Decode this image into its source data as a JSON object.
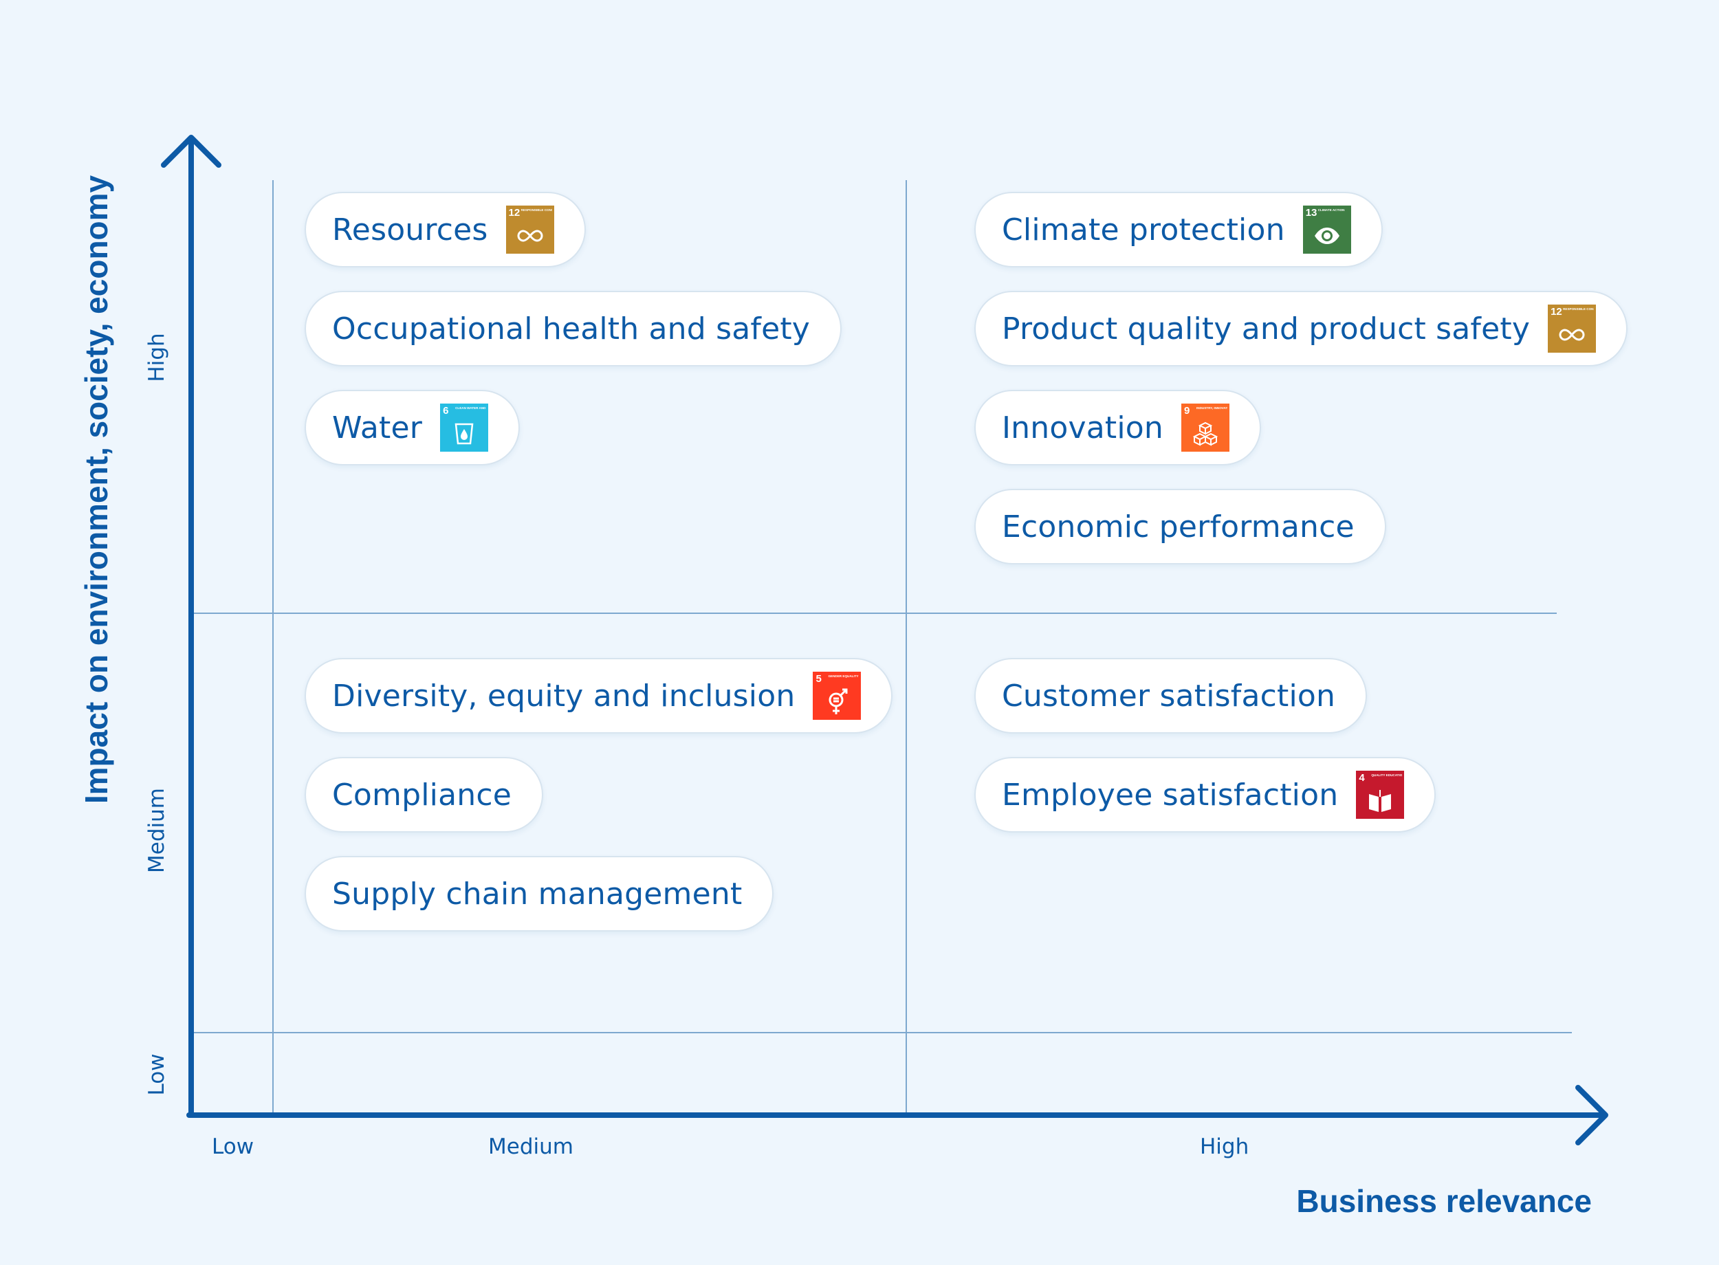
{
  "axes": {
    "y_title": "Impact on environment, society, economy",
    "x_title": "Business relevance",
    "y_ticks": [
      "High",
      "Medium",
      "Low"
    ],
    "x_ticks": [
      "Low",
      "Medium",
      "High"
    ]
  },
  "topics": {
    "resources": {
      "label": "Resources",
      "sdg": {
        "number": "12",
        "caption": "RESPONSIBLE CONSUMPTION AND PRODUCTION",
        "color": "#bf8b2e",
        "icon": "infinity-icon"
      }
    },
    "occupational": {
      "label": "Occupational health and safety"
    },
    "water": {
      "label": "Water",
      "sdg": {
        "number": "6",
        "caption": "CLEAN WATER AND SANITATION",
        "color": "#26bde2",
        "icon": "water-drop-icon"
      }
    },
    "climate": {
      "label": "Climate protection",
      "sdg": {
        "number": "13",
        "caption": "CLIMATE ACTION",
        "color": "#3f7e44",
        "icon": "eye-globe-icon"
      }
    },
    "product_quality": {
      "label": "Product quality and product safety",
      "sdg": {
        "number": "12",
        "caption": "RESPONSIBLE CONSUMPTION AND PRODUCTION",
        "color": "#bf8b2e",
        "icon": "infinity-icon"
      }
    },
    "innovation": {
      "label": "Innovation",
      "sdg": {
        "number": "9",
        "caption": "INDUSTRY, INNOVATION AND INFRASTRUCTURE",
        "color": "#fd6925",
        "icon": "cubes-icon"
      }
    },
    "economic": {
      "label": "Economic performance"
    },
    "diversity": {
      "label": "Diversity, equity and inclusion",
      "sdg": {
        "number": "5",
        "caption": "GENDER EQUALITY",
        "color": "#ff3a21",
        "icon": "gender-equality-icon"
      }
    },
    "compliance": {
      "label": "Compliance"
    },
    "supply_chain": {
      "label": "Supply chain management"
    },
    "customer": {
      "label": "Customer satisfaction"
    },
    "employee": {
      "label": "Employee satisfaction",
      "sdg": {
        "number": "4",
        "caption": "QUALITY EDUCATION",
        "color": "#c5192d",
        "icon": "book-icon"
      }
    }
  },
  "colors": {
    "axis": "#0d5aa6",
    "grid": "#7da8cf",
    "background": "#eef6fd"
  }
}
